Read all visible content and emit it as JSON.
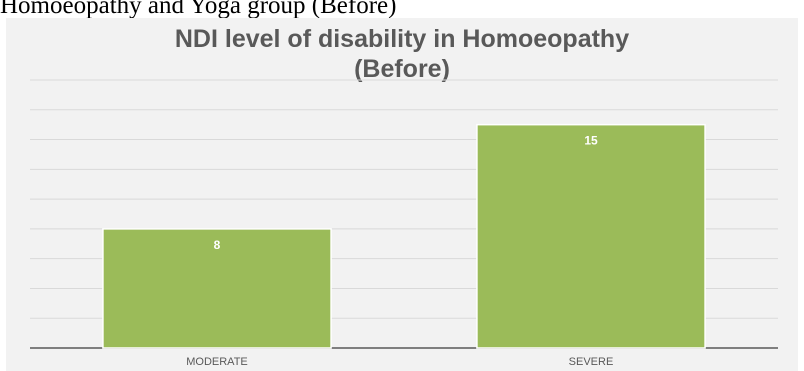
{
  "caption": "Homoeopathy and Yoga group (Before)",
  "chart_data": {
    "type": "bar",
    "title_lines": [
      "NDI level of disability in Homoeopathy",
      "(Before)"
    ],
    "categories": [
      "MODERATE",
      "SEVERE"
    ],
    "values": [
      8,
      15
    ],
    "ylim": [
      0,
      18
    ],
    "grid": true,
    "bar_color": "#9bbb59",
    "data_labels": [
      "8",
      "15"
    ]
  }
}
